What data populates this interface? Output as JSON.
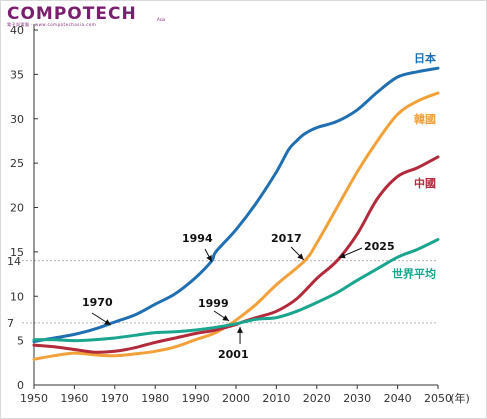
{
  "logo": {
    "title": "COMPOTECH",
    "subtitle": "電子與電腦 · www.compotechasia.com",
    "site": "Asia"
  },
  "chart_data": {
    "type": "line",
    "x_unit": "(年)",
    "xlim": [
      1950,
      2050
    ],
    "ylim": [
      0,
      40
    ],
    "x_ticks": [
      1950,
      1960,
      1970,
      1980,
      1990,
      2000,
      2010,
      2020,
      2030,
      2040,
      2050
    ],
    "y_ticks": [
      0,
      5,
      10,
      15,
      20,
      25,
      30,
      35,
      40
    ],
    "y_extra_ticks": [
      7,
      14
    ],
    "reference_lines": [
      7,
      14
    ],
    "grid": false,
    "series": [
      {
        "name": "日本",
        "color": "#1f6fb2",
        "x": [
          1950,
          1955,
          1960,
          1965,
          1970,
          1975,
          1980,
          1985,
          1990,
          1994,
          1995,
          2000,
          2005,
          2010,
          2013,
          2015,
          2017,
          2020,
          2025,
          2030,
          2035,
          2040,
          2045,
          2050
        ],
        "y": [
          4.9,
          5.3,
          5.7,
          6.3,
          7.1,
          7.9,
          9.1,
          10.3,
          12.1,
          14.0,
          15.0,
          17.5,
          20.5,
          24.0,
          26.5,
          27.5,
          28.3,
          29.0,
          29.7,
          31.0,
          33.0,
          34.7,
          35.3,
          35.7
        ]
      },
      {
        "name": "韓國",
        "color": "#f2a13a",
        "x": [
          1950,
          1955,
          1960,
          1965,
          1970,
          1975,
          1980,
          1985,
          1990,
          1995,
          1999,
          2000,
          2005,
          2010,
          2017,
          2020,
          2025,
          2030,
          2035,
          2040,
          2045,
          2050
        ],
        "y": [
          2.9,
          3.3,
          3.6,
          3.4,
          3.3,
          3.5,
          3.8,
          4.3,
          5.1,
          5.9,
          7.0,
          7.3,
          9.1,
          11.3,
          14.0,
          16.0,
          20.0,
          24.0,
          27.5,
          30.5,
          32.0,
          32.9
        ]
      },
      {
        "name": "中國",
        "color": "#b22a3c",
        "x": [
          1950,
          1955,
          1960,
          1965,
          1970,
          1975,
          1980,
          1985,
          1990,
          1995,
          2000,
          2001,
          2005,
          2010,
          2015,
          2020,
          2025,
          2030,
          2035,
          2040,
          2045,
          2050
        ],
        "y": [
          4.5,
          4.3,
          4.0,
          3.7,
          3.8,
          4.2,
          4.8,
          5.3,
          5.8,
          6.2,
          6.8,
          7.0,
          7.6,
          8.3,
          9.7,
          12.0,
          14.0,
          17.0,
          21.0,
          23.5,
          24.5,
          25.7
        ]
      },
      {
        "name": "世界平均",
        "color": "#1aa58e",
        "x": [
          1950,
          1955,
          1960,
          1965,
          1970,
          1975,
          1980,
          1985,
          1990,
          1995,
          2000,
          2005,
          2010,
          2015,
          2020,
          2025,
          2030,
          2035,
          2040,
          2045,
          2050
        ],
        "y": [
          5.1,
          5.1,
          5.0,
          5.1,
          5.3,
          5.6,
          5.9,
          6.0,
          6.2,
          6.5,
          6.9,
          7.4,
          7.6,
          8.3,
          9.3,
          10.4,
          11.8,
          13.1,
          14.4,
          15.3,
          16.4
        ]
      }
    ],
    "annotations": [
      {
        "text": "1970",
        "x": 1970,
        "y": 7.1
      },
      {
        "text": "1994",
        "x": 1994,
        "y": 14.0
      },
      {
        "text": "1999",
        "x": 1999,
        "y": 7.0
      },
      {
        "text": "2001",
        "x": 2001,
        "y": 7.0
      },
      {
        "text": "2017",
        "x": 2017,
        "y": 14.0
      },
      {
        "text": "2025",
        "x": 2025,
        "y": 14.0
      }
    ]
  }
}
